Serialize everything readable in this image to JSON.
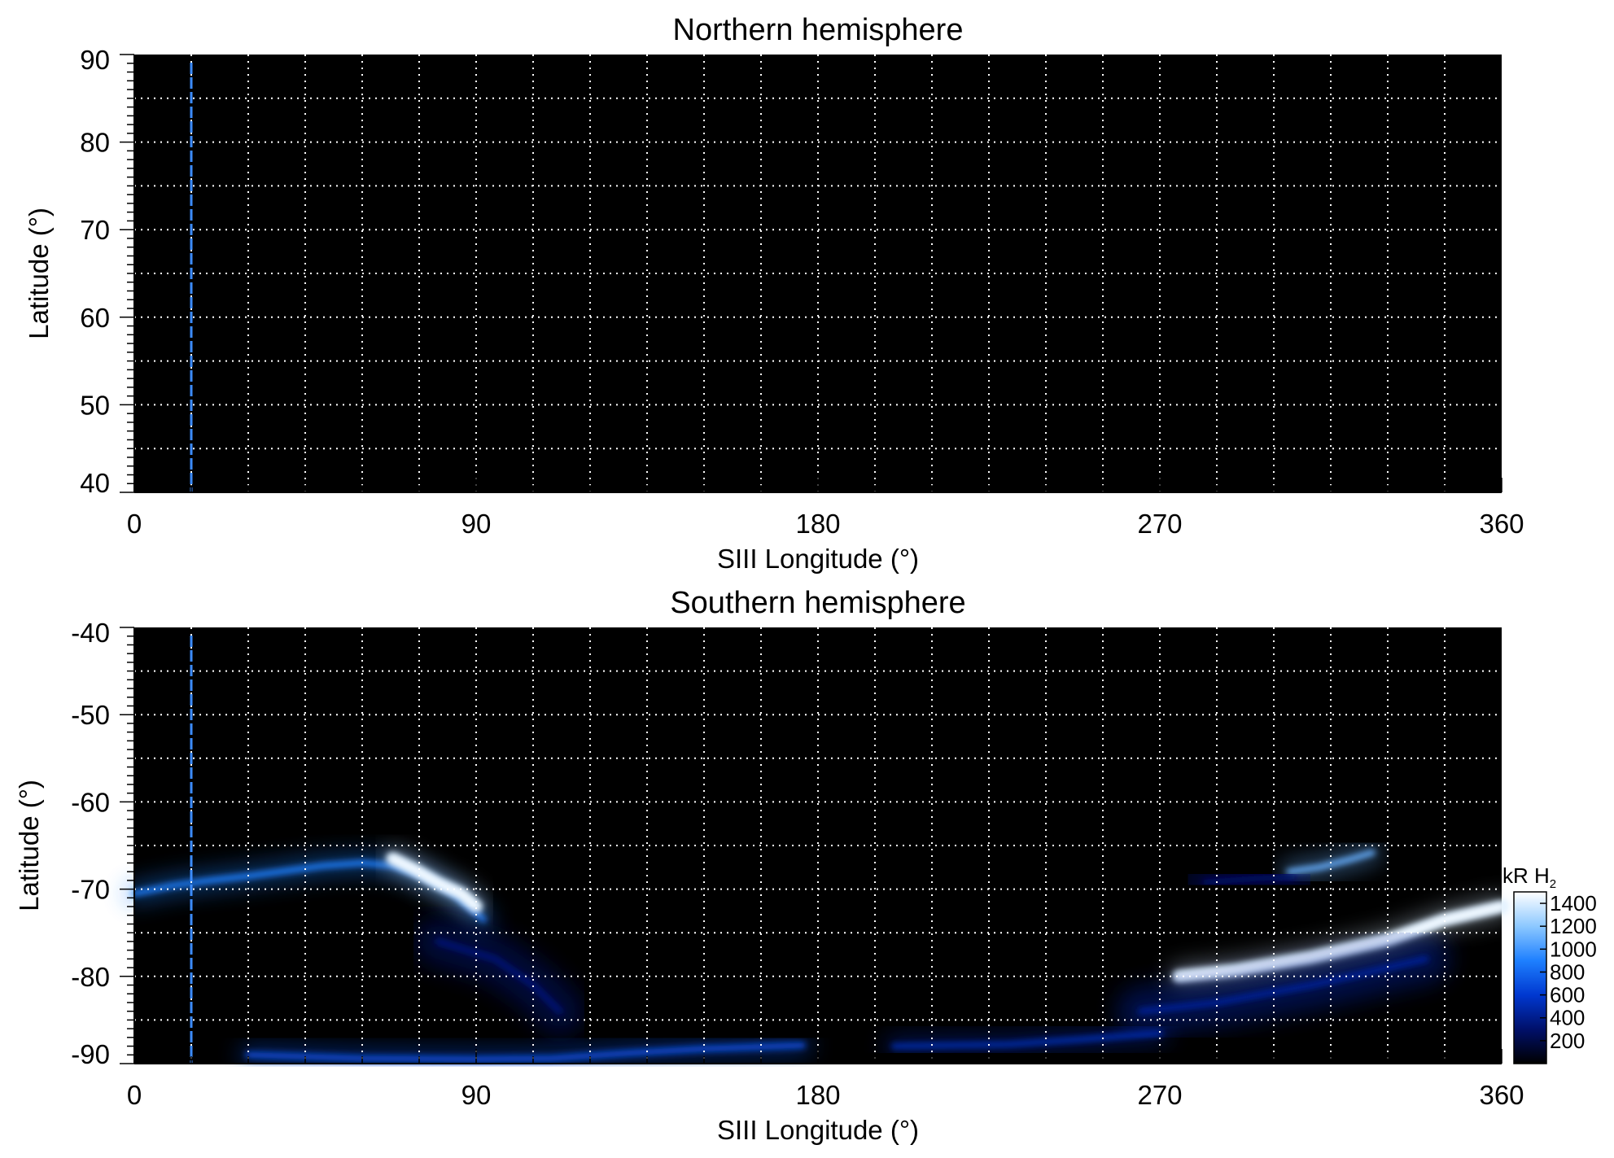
{
  "chart_data": [
    {
      "type": "heatmap",
      "title": "Northern hemisphere",
      "xlabel": "SIII Longitude (°)",
      "ylabel": "Latitude (°)",
      "xlim": [
        0,
        360
      ],
      "ylim": [
        40,
        90
      ],
      "x_ticks": [
        "0",
        "90",
        "180",
        "270",
        "360"
      ],
      "y_ticks": [
        "90",
        "80",
        "70",
        "60",
        "50",
        "40"
      ],
      "grid": true,
      "grid_spacing_deg": {
        "longitude": 15,
        "latitude": 5
      },
      "grid_style": "white dotted",
      "background_color": "#000000",
      "marker_line": {
        "longitude": 15,
        "color": "#3c8cff",
        "style": "dashed"
      },
      "emission": []
    },
    {
      "type": "heatmap",
      "title": "Southern hemisphere",
      "xlabel": "SIII Longitude (°)",
      "ylabel": "Latitude (°)",
      "xlim": [
        0,
        360
      ],
      "ylim": [
        -90,
        -40
      ],
      "x_ticks": [
        "0",
        "90",
        "180",
        "270",
        "360"
      ],
      "y_ticks": [
        "-40",
        "-50",
        "-60",
        "-70",
        "-80",
        "-90"
      ],
      "grid": true,
      "grid_spacing_deg": {
        "longitude": 15,
        "latitude": 5
      },
      "grid_style": "white dotted",
      "background_color": "#000000",
      "marker_line": {
        "longitude": 15,
        "color": "#3c8cff",
        "style": "dashed"
      },
      "colorbar": {
        "unit": "kR H",
        "unit_subscript": "2",
        "ticks": [
          "1400",
          "1200",
          "1000",
          "800",
          "600",
          "400",
          "200"
        ],
        "range": [
          0,
          1500
        ],
        "colors": [
          "#000000",
          "#00106a",
          "#0038d0",
          "#1e80ff",
          "#8cc8ff",
          "#ffffff"
        ]
      },
      "emission": [
        {
          "name": "main oval arc (west)",
          "points": [
            [
              0,
              -70.5
            ],
            [
              10,
              -69.6
            ],
            [
              20,
              -69
            ],
            [
              30,
              -68.5
            ],
            [
              40,
              -67.9
            ],
            [
              50,
              -67.3
            ],
            [
              60,
              -67
            ],
            [
              68,
              -67.3
            ],
            [
              76,
              -68.5
            ],
            [
              84,
              -70.5
            ],
            [
              88,
              -72
            ],
            [
              92,
              -73.5
            ]
          ],
          "intensity": 900
        },
        {
          "name": "auroral streak",
          "points": [
            [
              68,
              -66.5
            ],
            [
              74,
              -67.8
            ],
            [
              80,
              -69.3
            ],
            [
              86,
              -70.5
            ],
            [
              90,
              -72
            ]
          ],
          "intensity": 1400
        },
        {
          "name": "diffuse emission west",
          "points": [
            [
              80,
              -76
            ],
            [
              95,
              -78
            ],
            [
              105,
              -81
            ],
            [
              112,
              -84
            ]
          ],
          "intensity": 350
        },
        {
          "name": "polar band",
          "points": [
            [
              30,
              -89
            ],
            [
              60,
              -89.4
            ],
            [
              90,
              -89.5
            ],
            [
              110,
              -89.4
            ],
            [
              130,
              -88.8
            ],
            [
              150,
              -88.3
            ],
            [
              176,
              -87.9
            ]
          ],
          "intensity": 700
        },
        {
          "name": "polar band east",
          "points": [
            [
              200,
              -88
            ],
            [
              230,
              -87.8
            ],
            [
              250,
              -87.2
            ],
            [
              270,
              -86.5
            ]
          ],
          "intensity": 500
        },
        {
          "name": "southern main oval (east)",
          "points": [
            [
              275,
              -80
            ],
            [
              290,
              -79.3
            ],
            [
              310,
              -77.8
            ],
            [
              330,
              -75.8
            ],
            [
              345,
              -73.5
            ],
            [
              360,
              -72
            ]
          ],
          "intensity": 1400
        },
        {
          "name": "diffuse emission east",
          "points": [
            [
              265,
              -84
            ],
            [
              285,
              -83
            ],
            [
              310,
              -81
            ],
            [
              340,
              -78
            ]
          ],
          "intensity": 450
        },
        {
          "name": "upper arc",
          "points": [
            [
              304,
              -68
            ],
            [
              312,
              -67.5
            ],
            [
              320,
              -66.6
            ],
            [
              326,
              -65.8
            ]
          ],
          "intensity": 1100
        },
        {
          "name": "faint arc",
          "points": [
            [
              282,
              -69.2
            ],
            [
              295,
              -68.8
            ],
            [
              305,
              -68.6
            ]
          ],
          "intensity": 300
        }
      ]
    }
  ]
}
